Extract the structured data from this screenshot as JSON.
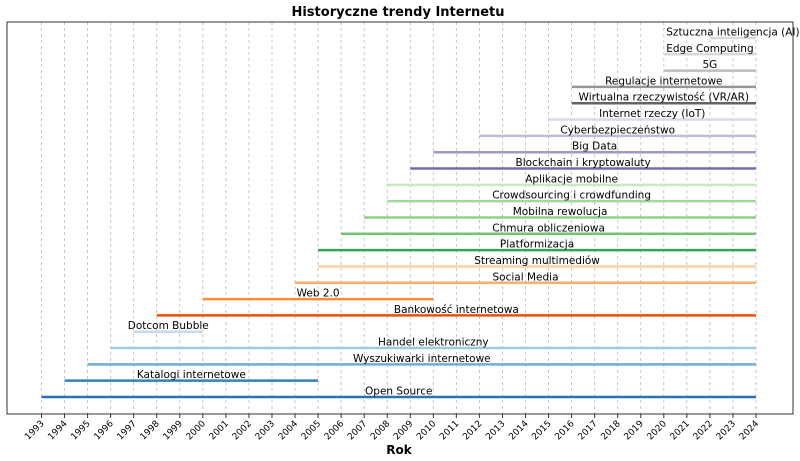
{
  "chart_data": {
    "type": "timeline",
    "title": "Historyczne trendy Internetu",
    "xlabel": "Rok",
    "ylabel": "",
    "xlim": [
      1993,
      2024
    ],
    "x_ticks": [
      1993,
      1994,
      1995,
      1996,
      1997,
      1998,
      1999,
      2000,
      2001,
      2002,
      2003,
      2004,
      2005,
      2006,
      2007,
      2008,
      2009,
      2010,
      2011,
      2012,
      2013,
      2014,
      2015,
      2016,
      2017,
      2018,
      2019,
      2020,
      2021,
      2022,
      2023,
      2024
    ],
    "grid": "vertical dashed",
    "series": [
      {
        "name": "Open Source",
        "start": 1993,
        "end": 2024,
        "color": "#2a72b5"
      },
      {
        "name": "Katalogi internetowe",
        "start": 1994,
        "end": 2005,
        "color": "#3182bd"
      },
      {
        "name": "Wyszukiwarki internetowe",
        "start": 1995,
        "end": 2024,
        "color": "#6baed6"
      },
      {
        "name": "Handel elektroniczny",
        "start": 1996,
        "end": 2024,
        "color": "#9ecae1"
      },
      {
        "name": "Dotcom Bubble",
        "start": 1997,
        "end": 2000,
        "color": "#c6dbef"
      },
      {
        "name": "Bankowość internetowa",
        "start": 1998,
        "end": 2024,
        "color": "#e6550d"
      },
      {
        "name": "Web 2.0",
        "start": 2000,
        "end": 2010,
        "color": "#fd8d3c"
      },
      {
        "name": "Social Media",
        "start": 2004,
        "end": 2024,
        "color": "#fdae6b"
      },
      {
        "name": "Streaming multimediów",
        "start": 2005,
        "end": 2024,
        "color": "#fdd0a2"
      },
      {
        "name": "Platformizacja",
        "start": 2005,
        "end": 2024,
        "color": "#31a354"
      },
      {
        "name": "Chmura obliczeniowa",
        "start": 2006,
        "end": 2024,
        "color": "#74c476"
      },
      {
        "name": "Mobilna rewolucja",
        "start": 2007,
        "end": 2024,
        "color": "#8fd08a"
      },
      {
        "name": "Crowdsourcing i crowdfunding",
        "start": 2008,
        "end": 2024,
        "color": "#a1d99b"
      },
      {
        "name": "Aplikacje mobilne",
        "start": 2008,
        "end": 2024,
        "color": "#c7e9c0"
      },
      {
        "name": "Blockchain i kryptowaluty",
        "start": 2009,
        "end": 2024,
        "color": "#756bb1"
      },
      {
        "name": "Big Data",
        "start": 2010,
        "end": 2024,
        "color": "#9e9ac8"
      },
      {
        "name": "Cyberbezpieczeństwo",
        "start": 2012,
        "end": 2024,
        "color": "#bcbddc"
      },
      {
        "name": "Internet rzeczy (IoT)",
        "start": 2015,
        "end": 2024,
        "color": "#dadaeb"
      },
      {
        "name": "Wirtualna rzeczywistość (VR/AR)",
        "start": 2016,
        "end": 2024,
        "color": "#636363"
      },
      {
        "name": "Regulacje internetowe",
        "start": 2016,
        "end": 2024,
        "color": "#969696"
      },
      {
        "name": "5G",
        "start": 2020,
        "end": 2024,
        "color": "#bdbdbd"
      },
      {
        "name": "Edge Computing",
        "start": 2020,
        "end": 2024,
        "color": "#d9d9d9"
      },
      {
        "name": "Sztuczna inteligencja (AI)",
        "start": 2022,
        "end": 2024,
        "color": "#d9d9d9"
      }
    ]
  }
}
